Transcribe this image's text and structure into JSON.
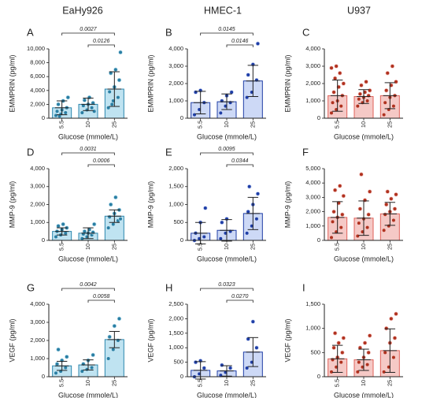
{
  "column_titles": [
    "EaHy926",
    "HMEC-1",
    "U937"
  ],
  "chart_data": [
    {
      "type": "bar",
      "panel": "A",
      "ylabel": "EMMPRIN (pg/ml)",
      "xlabel": "Glucose (mmole/L)",
      "categories": [
        "5.5",
        "10",
        "25"
      ],
      "values": [
        1500,
        2000,
        4200
      ],
      "errors": [
        1000,
        900,
        2500
      ],
      "points": [
        [
          400,
          600,
          800,
          1000,
          1200,
          1500,
          2000,
          2500,
          3000,
          300
        ],
        [
          800,
          1200,
          1500,
          1800,
          2000,
          2200,
          2600,
          3000,
          1000
        ],
        [
          1500,
          2500,
          3000,
          3800,
          4500,
          5500,
          6500,
          7000,
          9500,
          2000
        ]
      ],
      "ylim": [
        0,
        10000
      ],
      "yticks": [
        0,
        {
          "value": 2000,
          "label": "2,000"
        },
        {
          "value": 4000,
          "label": "4,000"
        },
        {
          "value": 6000,
          "label": "6,000"
        },
        {
          "value": 8000,
          "label": "8,000"
        },
        {
          "value": 10000,
          "label": "10,000"
        }
      ],
      "comparisons": [
        {
          "between": [
            "5.5",
            "25"
          ],
          "p": 0.0027
        },
        {
          "between": [
            "10",
            "25"
          ],
          "p": 0.0126
        }
      ],
      "color": "#bfe3f1",
      "edge": "#2b86ad",
      "dot": "#2a7ea3"
    },
    {
      "type": "bar",
      "panel": "B",
      "ylabel": "EMMPRIN (pg/ml)",
      "xlabel": "Glucose (mmole/L)",
      "categories": [
        "5.5",
        "10",
        "25"
      ],
      "values": [
        900,
        950,
        2150
      ],
      "errors": [
        650,
        450,
        900
      ],
      "points": [
        [
          200,
          500,
          900,
          1500,
          1600
        ],
        [
          300,
          700,
          900,
          1000,
          1300,
          1500
        ],
        [
          1200,
          1500,
          2200,
          2500,
          3100,
          4300
        ]
      ],
      "ylim": [
        0,
        4000
      ],
      "yticks": [
        0,
        {
          "value": 1000,
          "label": "1,000"
        },
        {
          "value": 2000,
          "label": "2,000"
        },
        {
          "value": 3000,
          "label": "3,000"
        },
        {
          "value": 4000,
          "label": "4,000"
        }
      ],
      "comparisons": [
        {
          "between": [
            "5.5",
            "25"
          ],
          "p": 0.0145
        },
        {
          "between": [
            "10",
            "25"
          ],
          "p": 0.0146
        }
      ],
      "color": "#cdd9f6",
      "edge": "#1f3ea6",
      "dot": "#1f3ea6"
    },
    {
      "type": "bar",
      "panel": "C",
      "ylabel": "EMMPRIN (pg/ml)",
      "xlabel": "Glucose (mmole/L)",
      "categories": [
        "5.5",
        "10",
        "25"
      ],
      "values": [
        1300,
        1250,
        1300
      ],
      "errors": [
        900,
        400,
        750
      ],
      "points": [
        [
          300,
          500,
          700,
          900,
          1000,
          1300,
          1500,
          1800,
          2000,
          2300,
          2600,
          2900,
          3000
        ],
        [
          700,
          900,
          1000,
          1100,
          1200,
          1300,
          1400,
          1500,
          1600,
          1900,
          2100
        ],
        [
          200,
          500,
          700,
          900,
          1200,
          1300,
          1600,
          1900,
          2100,
          2600,
          3000
        ]
      ],
      "ylim": [
        0,
        4000
      ],
      "yticks": [
        0,
        {
          "value": 1000,
          "label": "1,000"
        },
        {
          "value": 2000,
          "label": "2,000"
        },
        {
          "value": 3000,
          "label": "3,000"
        },
        {
          "value": 4000,
          "label": "4,000"
        }
      ],
      "comparisons": [],
      "color": "#f5c9c6",
      "edge": "#e0625a",
      "dot": "#b0321f"
    },
    {
      "type": "bar",
      "panel": "D",
      "ylabel": "MMP-9 (pg/ml)",
      "xlabel": "Glucose (mmole/L)",
      "categories": [
        "5.5",
        "10",
        "25"
      ],
      "values": [
        500,
        400,
        1350
      ],
      "errors": [
        200,
        300,
        350
      ],
      "points": [
        [
          200,
          300,
          400,
          500,
          600,
          700,
          800,
          900
        ],
        [
          100,
          200,
          300,
          350,
          400,
          450,
          500,
          600,
          900
        ],
        [
          700,
          900,
          1100,
          1300,
          1500,
          1700,
          2000,
          2400,
          1200
        ]
      ],
      "ylim": [
        0,
        4000
      ],
      "yticks": [
        0,
        {
          "value": 1000,
          "label": "1,000"
        },
        {
          "value": 2000,
          "label": "2,000"
        },
        {
          "value": 3000,
          "label": "3,000"
        },
        {
          "value": 4000,
          "label": "4,000"
        }
      ],
      "comparisons": [
        {
          "between": [
            "5.5",
            "25"
          ],
          "p": 0.0031
        },
        {
          "between": [
            "10",
            "25"
          ],
          "p": 0.0006
        }
      ],
      "color": "#bfe3f1",
      "edge": "#2b86ad",
      "dot": "#2a7ea3"
    },
    {
      "type": "bar",
      "panel": "E",
      "ylabel": "MMP-9 (pg/ml)",
      "xlabel": "Glucose (mmole/L)",
      "categories": [
        "5.5",
        "10",
        "25"
      ],
      "values": [
        200,
        280,
        750
      ],
      "errors": [
        300,
        300,
        450
      ],
      "points": [
        [
          0,
          50,
          100,
          200,
          500,
          900
        ],
        [
          50,
          200,
          250,
          500,
          600
        ],
        [
          200,
          400,
          600,
          800,
          1000,
          1300,
          1500
        ]
      ],
      "ylim": [
        0,
        2000
      ],
      "yticks": [
        0,
        500,
        {
          "value": 1000,
          "label": "1,000"
        },
        {
          "value": 1500,
          "label": "1,500"
        },
        {
          "value": 2000,
          "label": "2,000"
        }
      ],
      "comparisons": [
        {
          "between": [
            "5.5",
            "25"
          ],
          "p": 0.0095
        },
        {
          "between": [
            "10",
            "25"
          ],
          "p": 0.0344
        }
      ],
      "color": "#cdd9f6",
      "edge": "#1f3ea6",
      "dot": "#1f3ea6"
    },
    {
      "type": "bar",
      "panel": "F",
      "ylabel": "MMP-9 (pg/ml)",
      "xlabel": "Glucose (mmole/L)",
      "categories": [
        "5.5",
        "10",
        "25"
      ],
      "values": [
        1600,
        1550,
        1850
      ],
      "errors": [
        1100,
        1200,
        800
      ],
      "points": [
        [
          200,
          600,
          900,
          1300,
          1600,
          1800,
          2000,
          2600,
          3100,
          3500,
          3800
        ],
        [
          300,
          600,
          900,
          1200,
          1500,
          1800,
          2200,
          2800,
          3400,
          4600
        ],
        [
          700,
          1000,
          1400,
          1800,
          2000,
          2200,
          2500,
          2900,
          3200,
          3400
        ]
      ],
      "ylim": [
        0,
        5000
      ],
      "yticks": [
        0,
        {
          "value": 1000,
          "label": "1,000"
        },
        {
          "value": 2000,
          "label": "2,000"
        },
        {
          "value": 3000,
          "label": "3,000"
        },
        {
          "value": 4000,
          "label": "4,000"
        },
        {
          "value": 5000,
          "label": "5,000"
        }
      ],
      "comparisons": [],
      "color": "#f5c9c6",
      "edge": "#e0625a",
      "dot": "#b0321f"
    },
    {
      "type": "bar",
      "panel": "G",
      "ylabel": "VEGF (pg/ml)",
      "xlabel": "Glucose (mmole/L)",
      "categories": [
        "5.5",
        "10",
        "25"
      ],
      "values": [
        600,
        650,
        2050
      ],
      "errors": [
        250,
        280,
        450
      ],
      "points": [
        [
          200,
          300,
          500,
          700,
          900,
          1100,
          1500
        ],
        [
          300,
          400,
          500,
          700,
          900,
          1200
        ],
        [
          1000,
          1500,
          2000,
          2200,
          2800,
          3200
        ]
      ],
      "ylim": [
        0,
        4000
      ],
      "yticks": [
        0,
        {
          "value": 1000,
          "label": "1,000"
        },
        {
          "value": 2000,
          "label": "2,000"
        },
        {
          "value": 3000,
          "label": "3,000"
        },
        {
          "value": 4000,
          "label": "4,000"
        }
      ],
      "comparisons": [
        {
          "between": [
            "5.5",
            "25"
          ],
          "p": 0.0042
        },
        {
          "between": [
            "10",
            "25"
          ],
          "p": 0.0058
        }
      ],
      "color": "#bfe3f1",
      "edge": "#2b86ad",
      "dot": "#2a7ea3"
    },
    {
      "type": "bar",
      "panel": "H",
      "ylabel": "VEGF (pg/ml)",
      "xlabel": "Glucose (mmole/L)",
      "categories": [
        "5.5",
        "10",
        "25"
      ],
      "values": [
        220,
        200,
        850
      ],
      "errors": [
        300,
        180,
        500
      ],
      "points": [
        [
          0,
          100,
          300,
          500,
          550
        ],
        [
          50,
          150,
          300,
          400
        ],
        [
          300,
          500,
          1000,
          1300,
          1900
        ]
      ],
      "ylim": [
        0,
        2500
      ],
      "yticks": [
        0,
        500,
        {
          "value": 1000,
          "label": "1,000"
        },
        {
          "value": 1500,
          "label": "1,500"
        },
        {
          "value": 2000,
          "label": "2,000"
        },
        {
          "value": 2500,
          "label": "2,500"
        }
      ],
      "comparisons": [
        {
          "between": [
            "5.5",
            "25"
          ],
          "p": 0.0323
        },
        {
          "between": [
            "10",
            "25"
          ],
          "p": 0.027,
          "label": "0.0270"
        }
      ],
      "color": "#cdd9f6",
      "edge": "#1f3ea6",
      "dot": "#1f3ea6"
    },
    {
      "type": "bar",
      "panel": "I",
      "ylabel": "VEGF (pg/ml)",
      "xlabel": "Glucose (mmole/L)",
      "categories": [
        "5.5",
        "10",
        "25"
      ],
      "values": [
        370,
        350,
        540
      ],
      "errors": [
        280,
        220,
        450
      ],
      "points": [
        [
          100,
          200,
          300,
          350,
          400,
          500,
          600,
          700,
          800,
          900
        ],
        [
          100,
          200,
          250,
          300,
          400,
          500,
          600,
          700,
          850
        ],
        [
          100,
          200,
          400,
          500,
          700,
          800,
          1000,
          1200,
          1300
        ]
      ],
      "ylim": [
        0,
        1500
      ],
      "yticks": [
        0,
        500,
        {
          "value": 1000,
          "label": "1,000"
        },
        {
          "value": 1500,
          "label": "1,500"
        }
      ],
      "comparisons": [],
      "color": "#f5c9c6",
      "edge": "#e0625a",
      "dot": "#b0321f"
    }
  ]
}
